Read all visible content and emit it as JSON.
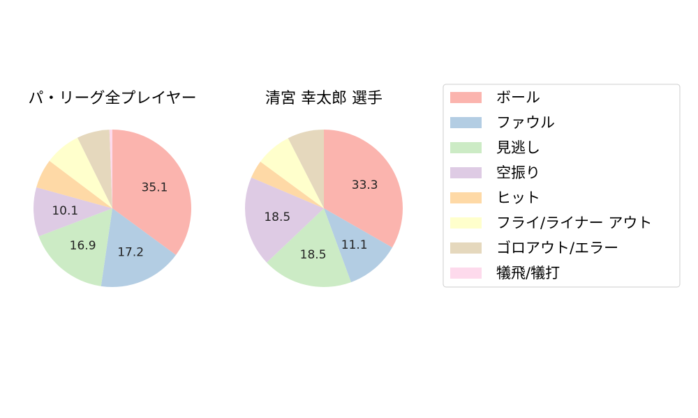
{
  "chart_data": [
    {
      "type": "pie",
      "title": "パ・リーグ全プレイヤー",
      "categories": [
        "ボール",
        "ファウル",
        "見逃し",
        "空振り",
        "ヒット",
        "フライ/ライナー アウト",
        "ゴロアウト/エラー",
        "犠飛/犠打"
      ],
      "values": [
        35.1,
        17.2,
        16.9,
        10.1,
        6.0,
        7.4,
        6.7,
        0.6
      ],
      "data_labels": [
        "35.1",
        "17.2",
        "16.9",
        "10.1",
        "",
        "",
        "",
        ""
      ]
    },
    {
      "type": "pie",
      "title": "清宮 幸太郎  選手",
      "categories": [
        "ボール",
        "ファウル",
        "見逃し",
        "空振り",
        "ヒット",
        "フライ/ライナー アウト",
        "ゴロアウト/エラー",
        "犠飛/犠打"
      ],
      "values": [
        33.3,
        11.1,
        18.5,
        18.5,
        3.7,
        7.4,
        7.5,
        0.0
      ],
      "data_labels": [
        "33.3",
        "11.1",
        "18.5",
        "18.5",
        "",
        "",
        "",
        ""
      ]
    }
  ],
  "legend": {
    "placement": "right",
    "items": [
      {
        "label": "ボール",
        "color": "#fbb4ae"
      },
      {
        "label": "ファウル",
        "color": "#b3cde3"
      },
      {
        "label": "見逃し",
        "color": "#ccebc5"
      },
      {
        "label": "空振り",
        "color": "#decbe4"
      },
      {
        "label": "ヒット",
        "color": "#fed9a6"
      },
      {
        "label": "フライ/ライナー アウト",
        "color": "#ffffcc"
      },
      {
        "label": "ゴロアウト/エラー",
        "color": "#e5d8bd"
      },
      {
        "label": "犠飛/犠打",
        "color": "#fddaec"
      }
    ]
  }
}
